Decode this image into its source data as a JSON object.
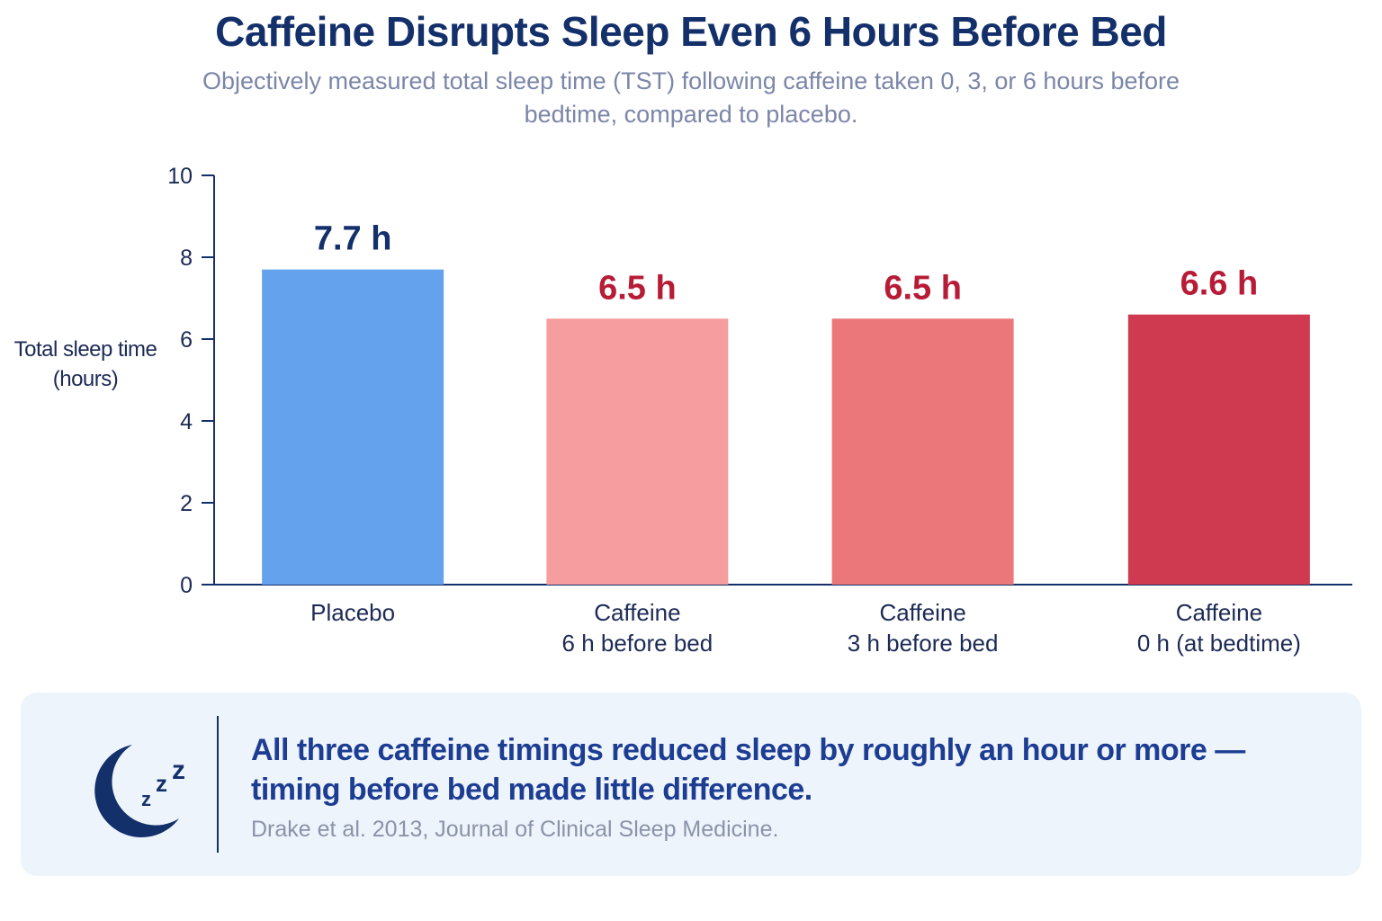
{
  "title": "Caffeine Disrupts Sleep Even 6 Hours Before Bed",
  "subtitle": "Objectively measured total sleep time (TST) following caffeine taken 0, 3, or 6 hours before bedtime, compared to placebo.",
  "chart_data": {
    "type": "bar",
    "ylabel": "Total sleep time\n(hours)",
    "ylim": [
      0,
      10
    ],
    "yticks": [
      0,
      2,
      4,
      6,
      8,
      10
    ],
    "grid": false,
    "categories": [
      [
        "Placebo"
      ],
      [
        "Caffeine",
        "6 h before bed"
      ],
      [
        "Caffeine",
        "3 h before bed"
      ],
      [
        "Caffeine",
        "0 h (at bedtime)"
      ]
    ],
    "values": [
      7.7,
      6.5,
      6.5,
      6.6
    ],
    "data_labels": [
      "7.7 h",
      "6.5 h",
      "6.5 h",
      "6.6 h"
    ],
    "bar_colors": [
      "#64a2ee",
      "#f59d9f",
      "#ec777a",
      "#cf3a50"
    ],
    "label_colors": [
      "#14306b",
      "#b71c37",
      "#b71c37",
      "#b71c37"
    ]
  },
  "note": {
    "icon": "moon-zzz-icon",
    "text": "All three caffeine timings reduced sleep by roughly an hour or more — timing before bed made little difference.",
    "source": "Drake et al. 2013, Journal of Clinical Sleep Medicine."
  },
  "colors": {
    "axis": "#14306b",
    "title": "#14306b",
    "note_bg": "#eef4fc"
  }
}
